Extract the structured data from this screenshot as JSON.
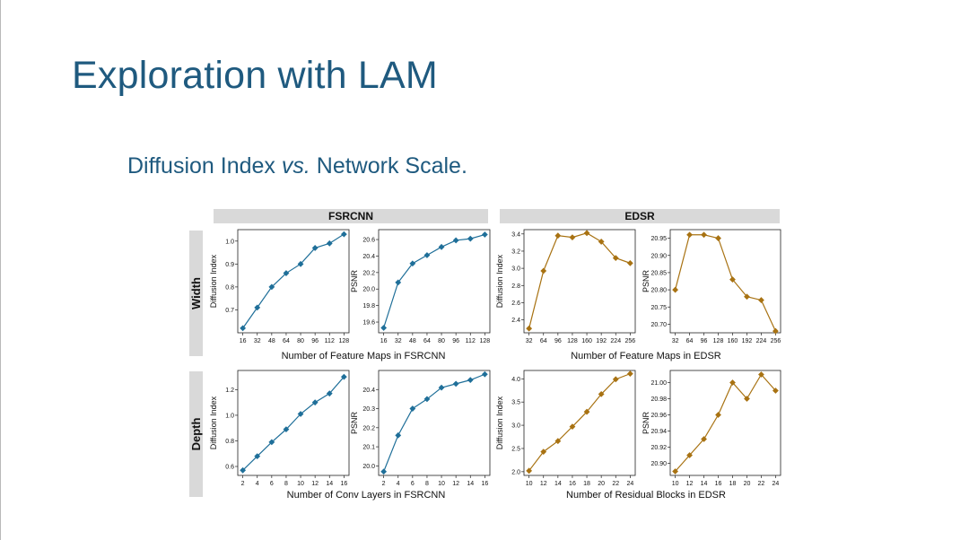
{
  "slide": {
    "title": "Exploration with LAM",
    "subtitle_pre": "Diffusion Index ",
    "subtitle_vs": "vs.",
    "subtitle_post": " Network Scale."
  },
  "figure": {
    "column_headers": [
      "FSRCNN",
      "EDSR"
    ],
    "row_labels": [
      "Width",
      "Depth"
    ],
    "group_xlabels": [
      "Number of Feature Maps in FSRCNN",
      "Number of Feature Maps in EDSR",
      "Number of Conv Layers in FSRCNN",
      "Number of Residual Blocks in EDSR"
    ],
    "colors": {
      "fsrcnn": "#1f6f99",
      "edsr": "#a87212",
      "header_bg": "#d9d9d9"
    }
  },
  "chart_data": [
    {
      "type": "line",
      "model": "FSRCNN",
      "scale": "Width",
      "ylabel": "Diffusion Index",
      "x": [
        16,
        32,
        48,
        64,
        80,
        96,
        112,
        128
      ],
      "xticks": [
        "16",
        "32",
        "48",
        "64",
        "80",
        "96",
        "112",
        "128"
      ],
      "values": [
        0.62,
        0.71,
        0.8,
        0.86,
        0.9,
        0.97,
        0.99,
        1.03
      ],
      "ylim": [
        0.6,
        1.05
      ],
      "yticks": [
        0.7,
        0.8,
        0.9,
        1.0
      ],
      "ytick_labels": [
        "0.7",
        "0.8",
        "0.9",
        "1.0"
      ]
    },
    {
      "type": "line",
      "model": "FSRCNN",
      "scale": "Width",
      "ylabel": "PSNR",
      "x": [
        16,
        32,
        48,
        64,
        80,
        96,
        112,
        128
      ],
      "xticks": [
        "16",
        "32",
        "48",
        "64",
        "80",
        "96",
        "112",
        "128"
      ],
      "values": [
        19.53,
        20.08,
        20.31,
        20.41,
        20.51,
        20.59,
        20.61,
        20.66
      ],
      "ylim": [
        19.47,
        20.72
      ],
      "yticks": [
        19.6,
        19.8,
        20.0,
        20.2,
        20.4,
        20.6
      ],
      "ytick_labels": [
        "19.6",
        "19.8",
        "20.0",
        "20.2",
        "20.4",
        "20.6"
      ]
    },
    {
      "type": "line",
      "model": "EDSR",
      "scale": "Width",
      "ylabel": "Diffusion Index",
      "x": [
        32,
        64,
        96,
        128,
        160,
        192,
        224,
        256
      ],
      "xticks": [
        "32",
        "64",
        "96",
        "128",
        "160",
        "192",
        "224",
        "256"
      ],
      "values": [
        2.3,
        2.97,
        3.38,
        3.36,
        3.41,
        3.31,
        3.12,
        3.06
      ],
      "ylim": [
        2.25,
        3.45
      ],
      "yticks": [
        2.4,
        2.6,
        2.8,
        3.0,
        3.2,
        3.4
      ],
      "ytick_labels": [
        "2.4",
        "2.6",
        "2.8",
        "3.0",
        "3.2",
        "3.4"
      ]
    },
    {
      "type": "line",
      "model": "EDSR",
      "scale": "Width",
      "ylabel": "PSNR",
      "x": [
        32,
        64,
        96,
        128,
        160,
        192,
        224,
        256
      ],
      "xticks": [
        "32",
        "64",
        "96",
        "128",
        "160",
        "192",
        "224",
        "256"
      ],
      "values": [
        20.8,
        20.96,
        20.96,
        20.95,
        20.83,
        20.78,
        20.77,
        20.68
      ],
      "ylim": [
        20.675,
        20.975
      ],
      "yticks": [
        20.7,
        20.75,
        20.8,
        20.85,
        20.9,
        20.95
      ],
      "ytick_labels": [
        "20.70",
        "20.75",
        "20.80",
        "20.85",
        "20.90",
        "20.95"
      ]
    },
    {
      "type": "line",
      "model": "FSRCNN",
      "scale": "Depth",
      "ylabel": "Diffusion Index",
      "x": [
        2,
        4,
        6,
        8,
        10,
        12,
        14,
        16
      ],
      "xticks": [
        "2",
        "4",
        "6",
        "8",
        "10",
        "12",
        "14",
        "16"
      ],
      "values": [
        0.57,
        0.68,
        0.79,
        0.89,
        1.01,
        1.1,
        1.17,
        1.3
      ],
      "ylim": [
        0.53,
        1.35
      ],
      "yticks": [
        0.6,
        0.8,
        1.0,
        1.2
      ],
      "ytick_labels": [
        "0.6",
        "0.8",
        "1.0",
        "1.2"
      ]
    },
    {
      "type": "line",
      "model": "FSRCNN",
      "scale": "Depth",
      "ylabel": "PSNR",
      "x": [
        2,
        4,
        6,
        8,
        10,
        12,
        14,
        16
      ],
      "xticks": [
        "2",
        "4",
        "6",
        "8",
        "10",
        "12",
        "14",
        "16"
      ],
      "values": [
        19.97,
        20.16,
        20.3,
        20.35,
        20.41,
        20.43,
        20.45,
        20.48
      ],
      "ylim": [
        19.95,
        20.5
      ],
      "yticks": [
        20.0,
        20.1,
        20.2,
        20.3,
        20.4
      ],
      "ytick_labels": [
        "20.0",
        "20.1",
        "20.2",
        "20.3",
        "20.4"
      ]
    },
    {
      "type": "line",
      "model": "EDSR",
      "scale": "Depth",
      "ylabel": "Diffusion Index",
      "x": [
        10,
        12,
        14,
        16,
        18,
        20,
        22,
        24
      ],
      "xticks": [
        "10",
        "12",
        "14",
        "16",
        "18",
        "20",
        "22",
        "24"
      ],
      "values": [
        2.02,
        2.43,
        2.66,
        2.97,
        3.29,
        3.67,
        3.99,
        4.11
      ],
      "ylim": [
        1.92,
        4.18
      ],
      "yticks": [
        2.0,
        2.5,
        3.0,
        3.5,
        4.0
      ],
      "ytick_labels": [
        "2.0",
        "2.5",
        "3.0",
        "3.5",
        "4.0"
      ]
    },
    {
      "type": "line",
      "model": "EDSR",
      "scale": "Depth",
      "ylabel": "PSNR",
      "x": [
        10,
        12,
        14,
        16,
        18,
        20,
        22,
        24
      ],
      "xticks": [
        "10",
        "12",
        "14",
        "16",
        "18",
        "20",
        "22",
        "24"
      ],
      "values": [
        20.89,
        20.91,
        20.93,
        20.96,
        21.0,
        20.98,
        21.01,
        20.99
      ],
      "ylim": [
        20.885,
        21.015
      ],
      "yticks": [
        20.9,
        20.92,
        20.94,
        20.96,
        20.98,
        21.0
      ],
      "ytick_labels": [
        "20.90",
        "20.92",
        "20.94",
        "20.96",
        "20.98",
        "21.00"
      ]
    }
  ]
}
